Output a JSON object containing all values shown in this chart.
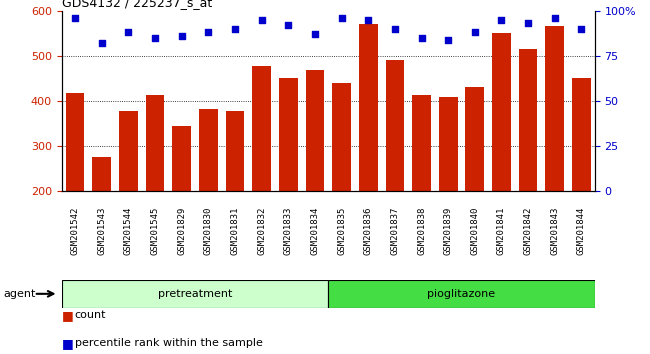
{
  "title": "GDS4132 / 225237_s_at",
  "categories": [
    "GSM201542",
    "GSM201543",
    "GSM201544",
    "GSM201545",
    "GSM201829",
    "GSM201830",
    "GSM201831",
    "GSM201832",
    "GSM201833",
    "GSM201834",
    "GSM201835",
    "GSM201836",
    "GSM201837",
    "GSM201838",
    "GSM201839",
    "GSM201840",
    "GSM201841",
    "GSM201842",
    "GSM201843",
    "GSM201844"
  ],
  "bar_values": [
    418,
    275,
    378,
    413,
    345,
    383,
    378,
    478,
    450,
    468,
    440,
    570,
    490,
    413,
    408,
    430,
    550,
    515,
    565,
    450
  ],
  "percentile_values": [
    96,
    82,
    88,
    85,
    86,
    88,
    90,
    95,
    92,
    87,
    96,
    95,
    90,
    85,
    84,
    88,
    95,
    93,
    96,
    90
  ],
  "bar_color": "#cc2200",
  "percentile_color": "#0000cc",
  "ylim_left": [
    200,
    600
  ],
  "ylim_right": [
    0,
    100
  ],
  "yticks_left": [
    200,
    300,
    400,
    500,
    600
  ],
  "yticks_right": [
    0,
    25,
    50,
    75,
    100
  ],
  "yticklabels_right": [
    "0",
    "25",
    "50",
    "75",
    "100%"
  ],
  "grid_values": [
    300,
    400,
    500
  ],
  "group1_label": "pretreatment",
  "group2_label": "pioglitazone",
  "group1_count": 10,
  "group2_count": 10,
  "agent_label": "agent",
  "legend_count": "count",
  "legend_percentile": "percentile rank within the sample",
  "group1_color": "#ccffcc",
  "group2_color": "#44dd44",
  "dark_bar_color": "#444444",
  "xtick_bg": "#cccccc",
  "bar_bottom": 200
}
